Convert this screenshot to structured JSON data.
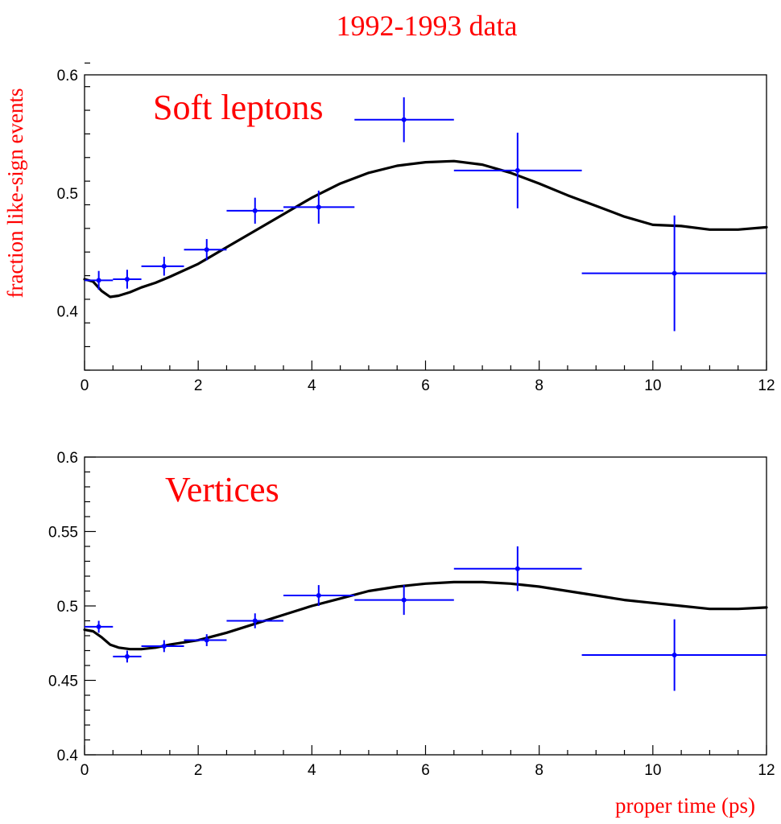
{
  "figure": {
    "title": "1992-1993 data",
    "ylabel": "fraction like-sign events",
    "xlabel": "proper time (ps)"
  },
  "colors": {
    "data": "#0000ff",
    "fit": "#000000",
    "text_accent": "#ff0000",
    "axes": "#000000"
  },
  "chart_data": [
    {
      "type": "scatter",
      "label": "Soft leptons",
      "xlim": [
        0,
        12
      ],
      "ylim": [
        0.35,
        0.6
      ],
      "xticks": [
        0,
        2,
        4,
        6,
        8,
        10,
        12
      ],
      "xtick_labels": [
        "0",
        "2",
        "4",
        "6",
        "8",
        "10",
        "12"
      ],
      "yticks": [
        0.4,
        0.5,
        0.6
      ],
      "ytick_labels": [
        "0.4",
        "0.5",
        "0.6"
      ],
      "grid": false,
      "points": [
        {
          "x": 0.25,
          "xlo": 0.0,
          "xhi": 0.5,
          "y": 0.426,
          "yerr": 0.008
        },
        {
          "x": 0.75,
          "xlo": 0.5,
          "xhi": 1.0,
          "y": 0.427,
          "yerr": 0.008
        },
        {
          "x": 1.4,
          "xlo": 1.0,
          "xhi": 1.75,
          "y": 0.438,
          "yerr": 0.008
        },
        {
          "x": 2.15,
          "xlo": 1.75,
          "xhi": 2.5,
          "y": 0.452,
          "yerr": 0.009
        },
        {
          "x": 3.0,
          "xlo": 2.5,
          "xhi": 3.5,
          "y": 0.485,
          "yerr": 0.011
        },
        {
          "x": 4.12,
          "xlo": 3.5,
          "xhi": 4.75,
          "y": 0.488,
          "yerr": 0.014
        },
        {
          "x": 5.62,
          "xlo": 4.75,
          "xhi": 6.5,
          "y": 0.562,
          "yerr": 0.019
        },
        {
          "x": 7.62,
          "xlo": 6.5,
          "xhi": 8.75,
          "y": 0.519,
          "yerr": 0.032
        },
        {
          "x": 10.38,
          "xlo": 8.75,
          "xhi": 12.0,
          "y": 0.432,
          "yerr": 0.049
        }
      ],
      "fit_curve": {
        "x": [
          0.0,
          0.15,
          0.3,
          0.45,
          0.6,
          0.8,
          1.0,
          1.25,
          1.5,
          2.0,
          2.5,
          3.0,
          3.5,
          4.0,
          4.5,
          5.0,
          5.5,
          6.0,
          6.5,
          7.0,
          7.5,
          8.0,
          8.5,
          9.0,
          9.5,
          10.0,
          10.5,
          11.0,
          11.5,
          12.0
        ],
        "y": [
          0.427,
          0.425,
          0.417,
          0.412,
          0.413,
          0.416,
          0.42,
          0.424,
          0.429,
          0.44,
          0.454,
          0.468,
          0.482,
          0.496,
          0.508,
          0.517,
          0.523,
          0.526,
          0.527,
          0.524,
          0.517,
          0.508,
          0.498,
          0.489,
          0.48,
          0.473,
          0.472,
          0.469,
          0.469,
          0.471
        ]
      }
    },
    {
      "type": "scatter",
      "label": "Vertices",
      "xlim": [
        0,
        12
      ],
      "ylim": [
        0.4,
        0.6
      ],
      "xticks": [
        0,
        2,
        4,
        6,
        8,
        10,
        12
      ],
      "xtick_labels": [
        "0",
        "2",
        "4",
        "6",
        "8",
        "10",
        "12"
      ],
      "yticks": [
        0.4,
        0.45,
        0.5,
        0.55,
        0.6
      ],
      "ytick_labels": [
        "0.4",
        "0.45",
        "0.5",
        "0.55",
        "0.6"
      ],
      "grid": false,
      "points": [
        {
          "x": 0.25,
          "xlo": 0.0,
          "xhi": 0.5,
          "y": 0.486,
          "yerr": 0.004
        },
        {
          "x": 0.75,
          "xlo": 0.5,
          "xhi": 1.0,
          "y": 0.466,
          "yerr": 0.004
        },
        {
          "x": 1.4,
          "xlo": 1.0,
          "xhi": 1.75,
          "y": 0.473,
          "yerr": 0.004
        },
        {
          "x": 2.15,
          "xlo": 1.75,
          "xhi": 2.5,
          "y": 0.477,
          "yerr": 0.004
        },
        {
          "x": 3.0,
          "xlo": 2.5,
          "xhi": 3.5,
          "y": 0.49,
          "yerr": 0.005
        },
        {
          "x": 4.12,
          "xlo": 3.5,
          "xhi": 4.75,
          "y": 0.507,
          "yerr": 0.007
        },
        {
          "x": 5.62,
          "xlo": 4.75,
          "xhi": 6.5,
          "y": 0.504,
          "yerr": 0.01
        },
        {
          "x": 7.62,
          "xlo": 6.5,
          "xhi": 8.75,
          "y": 0.525,
          "yerr": 0.015
        },
        {
          "x": 10.38,
          "xlo": 8.75,
          "xhi": 12.0,
          "y": 0.467,
          "yerr": 0.024
        }
      ],
      "fit_curve": {
        "x": [
          0.0,
          0.15,
          0.3,
          0.45,
          0.6,
          0.8,
          1.0,
          1.25,
          1.5,
          2.0,
          2.5,
          3.0,
          3.5,
          4.0,
          4.5,
          5.0,
          5.5,
          6.0,
          6.5,
          7.0,
          7.5,
          8.0,
          8.5,
          9.0,
          9.5,
          10.0,
          10.5,
          11.0,
          11.5,
          12.0
        ],
        "y": [
          0.484,
          0.483,
          0.479,
          0.474,
          0.472,
          0.471,
          0.471,
          0.472,
          0.474,
          0.477,
          0.482,
          0.488,
          0.494,
          0.5,
          0.505,
          0.51,
          0.513,
          0.515,
          0.516,
          0.516,
          0.515,
          0.513,
          0.51,
          0.507,
          0.504,
          0.502,
          0.5,
          0.498,
          0.498,
          0.499
        ]
      }
    }
  ]
}
